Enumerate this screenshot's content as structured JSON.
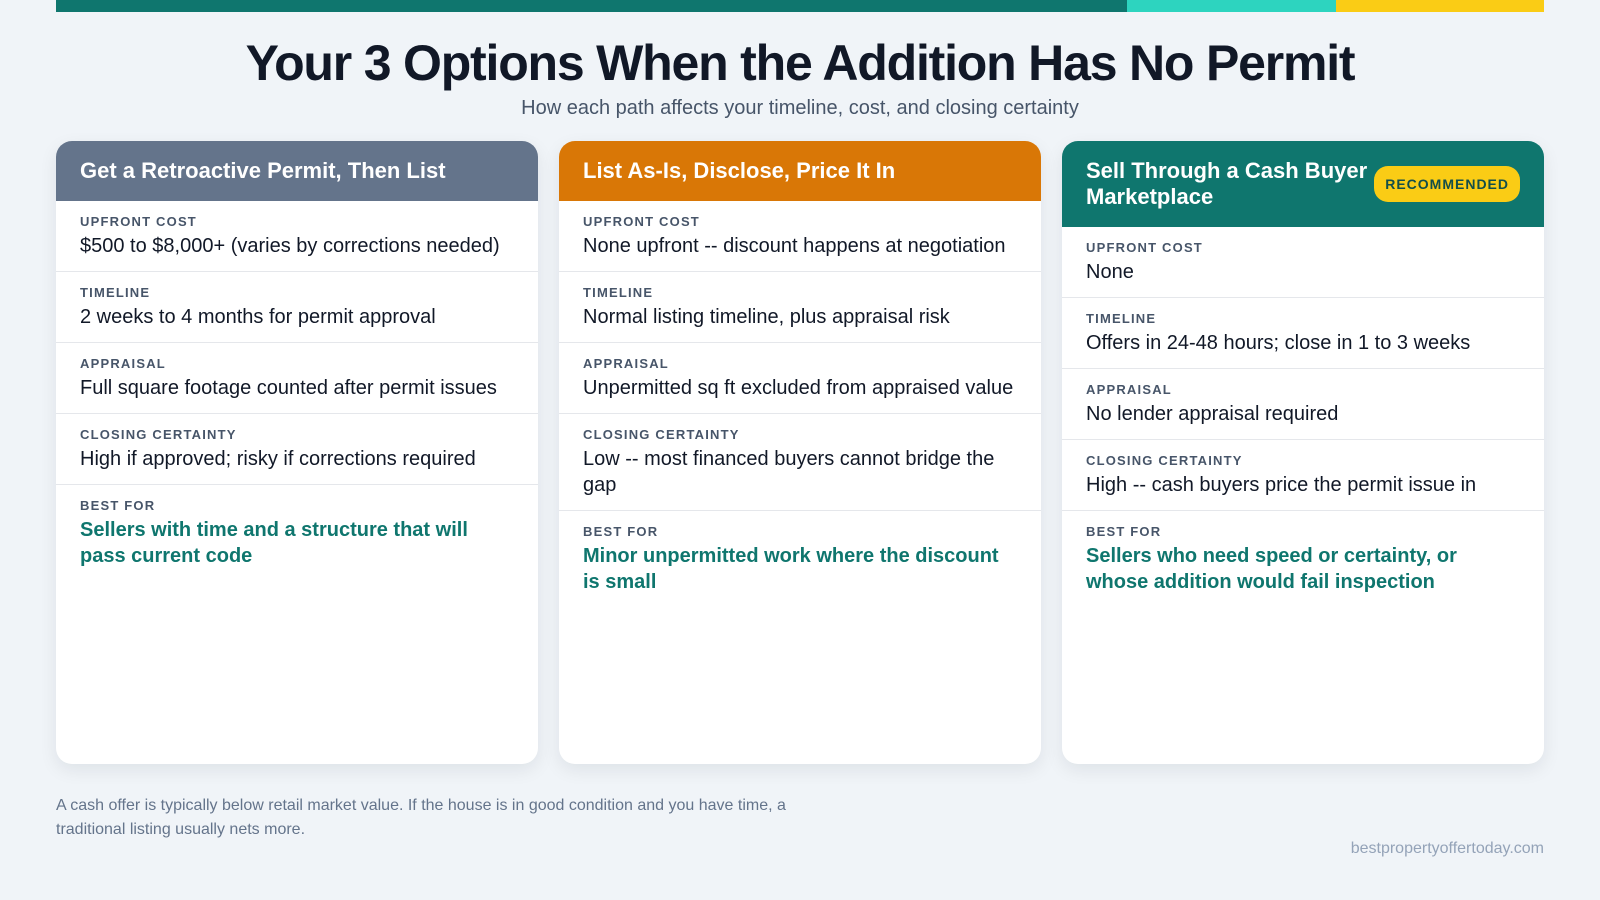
{
  "header": {
    "title": "Your 3 Options When the Addition Has No Permit",
    "subtitle": "How each path affects your timeline, cost, and closing certainty"
  },
  "cards": [
    {
      "title": "Get a Retroactive Permit, Then List",
      "rows": [
        {
          "label": "UPFRONT COST",
          "value": "$500 to $8,000+ (varies by corrections needed)"
        },
        {
          "label": "TIMELINE",
          "value": "2 weeks to 4 months for permit approval"
        },
        {
          "label": "APPRAISAL",
          "value": "Full square footage counted after permit issues"
        },
        {
          "label": "CLOSING CERTAINTY",
          "value": "High if approved; risky if corrections required"
        }
      ],
      "best_for": {
        "label": "BEST FOR",
        "value": "Sellers with time and a structure that will pass current code"
      }
    },
    {
      "title": "List As-Is, Disclose, Price It In",
      "rows": [
        {
          "label": "UPFRONT COST",
          "value": "None upfront -- discount happens at negotiation"
        },
        {
          "label": "TIMELINE",
          "value": "Normal listing timeline, plus appraisal risk"
        },
        {
          "label": "APPRAISAL",
          "value": "Unpermitted sq ft excluded from appraised value"
        },
        {
          "label": "CLOSING CERTAINTY",
          "value": "Low -- most financed buyers cannot bridge the gap"
        }
      ],
      "best_for": {
        "label": "BEST FOR",
        "value": "Minor unpermitted work where the discount is small"
      }
    },
    {
      "title": "Sell Through a Cash Buyer Marketplace",
      "badge": "RECOMMENDED",
      "rows": [
        {
          "label": "UPFRONT COST",
          "value": "None"
        },
        {
          "label": "TIMELINE",
          "value": "Offers in 24-48 hours; close in 1 to 3 weeks"
        },
        {
          "label": "APPRAISAL",
          "value": "No lender appraisal required"
        },
        {
          "label": "CLOSING CERTAINTY",
          "value": "High -- cash buyers price the permit issue in"
        }
      ],
      "best_for": {
        "label": "BEST FOR",
        "value": "Sellers who need speed or certainty, or whose addition would fail inspection"
      }
    }
  ],
  "footer": {
    "note": "A cash offer is typically below retail market value. If the house is in good condition and you have time, a traditional listing usually nets more.",
    "site": "bestpropertyoffertoday.com"
  }
}
